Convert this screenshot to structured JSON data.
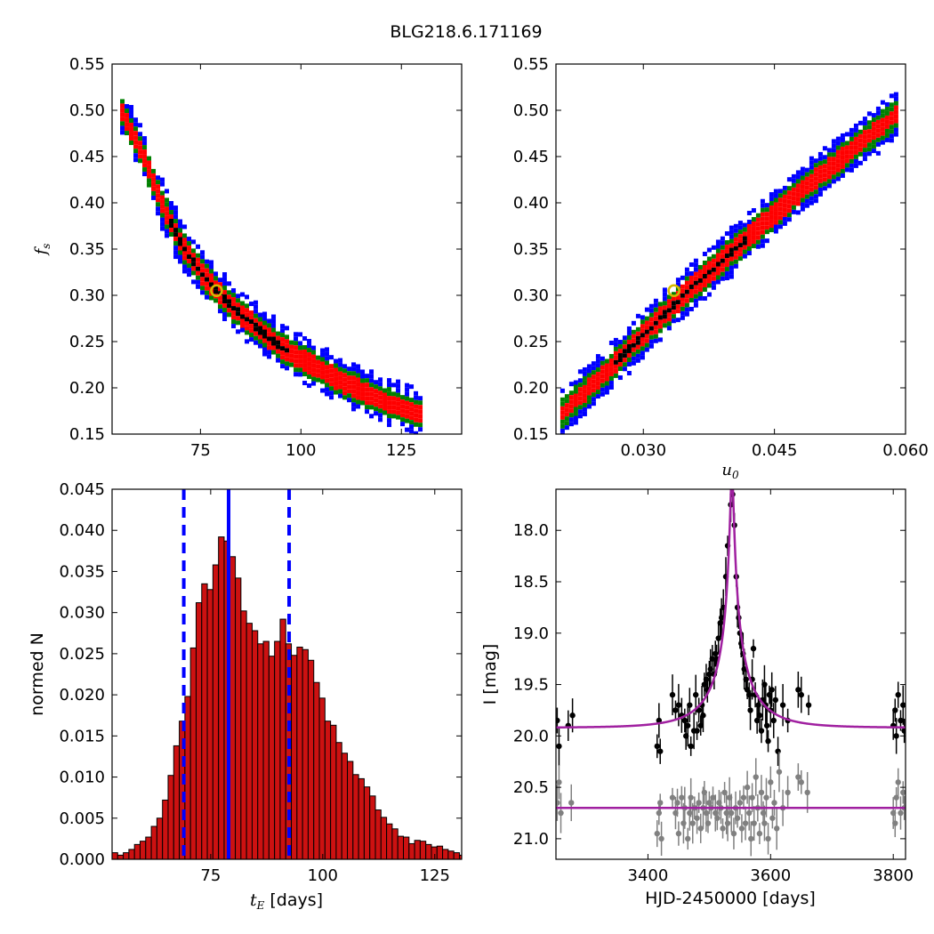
{
  "figure": {
    "title": "BLG218.6.171169"
  },
  "colors": {
    "blue": "#0000ff",
    "green": "#008000",
    "red": "#ff0000",
    "black": "#000000",
    "best_fit": "#d4b800",
    "bar_fill": "#cc1111",
    "model": "#a020a0",
    "gray": "#808080"
  },
  "chart_data": [
    {
      "id": "panel_tE_fs",
      "type": "heatmap",
      "title": "",
      "xlabel": "",
      "ylabel": "f_s",
      "xlim": [
        53,
        140
      ],
      "ylim": [
        0.15,
        0.55
      ],
      "xticks": [
        "75",
        "100",
        "125"
      ],
      "xtick_values": [
        75,
        100,
        125
      ],
      "yticks": [
        "0.15",
        "0.20",
        "0.25",
        "0.30",
        "0.35",
        "0.40",
        "0.45",
        "0.50",
        "0.55"
      ],
      "ytick_values": [
        0.15,
        0.2,
        0.25,
        0.3,
        0.35,
        0.4,
        0.45,
        0.5,
        0.55
      ],
      "description_levels": [
        "blue",
        "green",
        "red",
        "black"
      ],
      "ridge": [
        [
          55,
          0.5
        ],
        [
          60,
          0.455
        ],
        [
          65,
          0.4
        ],
        [
          70,
          0.355
        ],
        [
          75,
          0.325
        ],
        [
          80,
          0.3
        ],
        [
          85,
          0.28
        ],
        [
          90,
          0.262
        ],
        [
          95,
          0.245
        ],
        [
          100,
          0.232
        ],
        [
          105,
          0.22
        ],
        [
          110,
          0.208
        ],
        [
          115,
          0.198
        ],
        [
          120,
          0.188
        ],
        [
          125,
          0.18
        ],
        [
          130,
          0.173
        ]
      ],
      "best_fit": [
        79,
        0.305
      ]
    },
    {
      "id": "panel_u0_fs",
      "type": "heatmap",
      "title": "",
      "xlabel": "u_0",
      "ylabel": "",
      "xlim": [
        0.02,
        0.06
      ],
      "ylim": [
        0.15,
        0.55
      ],
      "xticks": [
        "0.030",
        "0.045",
        "0.060"
      ],
      "xtick_values": [
        0.03,
        0.045,
        0.06
      ],
      "yticks": [
        "0.15",
        "0.20",
        "0.25",
        "0.30",
        "0.35",
        "0.40",
        "0.45",
        "0.50",
        "0.55"
      ],
      "ytick_values": [
        0.15,
        0.2,
        0.25,
        0.3,
        0.35,
        0.4,
        0.45,
        0.5,
        0.55
      ],
      "ridge": [
        [
          0.0205,
          0.175
        ],
        [
          0.025,
          0.215
        ],
        [
          0.03,
          0.262
        ],
        [
          0.035,
          0.308
        ],
        [
          0.04,
          0.35
        ],
        [
          0.045,
          0.393
        ],
        [
          0.05,
          0.432
        ],
        [
          0.055,
          0.47
        ],
        [
          0.059,
          0.5
        ]
      ],
      "best_fit": [
        0.0335,
        0.305
      ]
    },
    {
      "id": "panel_tE_hist",
      "type": "bar",
      "title": "",
      "xlabel": "t_E  [days]",
      "ylabel": "normed N",
      "xlim": [
        53,
        131
      ],
      "ylim": [
        0.0,
        0.045
      ],
      "xticks": [
        "75",
        "100",
        "125"
      ],
      "xtick_values": [
        75,
        100,
        125
      ],
      "yticks": [
        "0.000",
        "0.005",
        "0.010",
        "0.015",
        "0.020",
        "0.025",
        "0.030",
        "0.035",
        "0.040",
        "0.045"
      ],
      "ytick_values": [
        0.0,
        0.005,
        0.01,
        0.015,
        0.02,
        0.025,
        0.03,
        0.035,
        0.04,
        0.045
      ],
      "bin_start": 53,
      "bin_width": 1.25,
      "values": [
        0.0008,
        0.0005,
        0.0008,
        0.0012,
        0.0018,
        0.0022,
        0.0027,
        0.004,
        0.005,
        0.0072,
        0.0102,
        0.0138,
        0.0168,
        0.0198,
        0.0257,
        0.0312,
        0.0335,
        0.0328,
        0.0358,
        0.0392,
        0.0387,
        0.0368,
        0.0342,
        0.0302,
        0.0287,
        0.0278,
        0.0262,
        0.0265,
        0.0247,
        0.0265,
        0.0292,
        0.0262,
        0.0248,
        0.0258,
        0.0255,
        0.0242,
        0.0215,
        0.0196,
        0.0168,
        0.0163,
        0.0142,
        0.0129,
        0.0119,
        0.0103,
        0.0098,
        0.0088,
        0.0077,
        0.006,
        0.0051,
        0.0043,
        0.0037,
        0.0028,
        0.0027,
        0.0019,
        0.0023,
        0.0022,
        0.0018,
        0.0015,
        0.0016,
        0.0012,
        0.001,
        0.0008,
        0.0005,
        0.0004
      ],
      "median": 79,
      "lower": 69,
      "upper": 92.5
    },
    {
      "id": "panel_lightcurve",
      "type": "scatter",
      "title": "",
      "xlabel": "HJD-2450000 [days]",
      "ylabel": "I [mag]",
      "xlim": [
        3250,
        3820
      ],
      "ylim": [
        21.2,
        17.6
      ],
      "xticks": [
        "3400",
        "3600",
        "3800"
      ],
      "xtick_values": [
        3400,
        3600,
        3800
      ],
      "yticks": [
        "18.0",
        "18.5",
        "19.0",
        "19.5",
        "20.0",
        "20.5",
        "21.0"
      ],
      "ytick_values": [
        18.0,
        18.5,
        19.0,
        19.5,
        20.0,
        20.5,
        21.0
      ],
      "model": {
        "t0": 3537,
        "tE": 79,
        "u0": 0.0335,
        "fs": 0.305,
        "I_base": 19.92
      },
      "shifted_baseline": 20.7,
      "series": [
        {
          "color": "black",
          "points": [
            [
              3252,
              19.85
            ],
            [
              3255,
              20.1
            ],
            [
              3270,
              19.9
            ],
            [
              3277,
              19.8
            ],
            [
              3415,
              20.1
            ],
            [
              3418,
              19.85
            ],
            [
              3420,
              20.15
            ],
            [
              3440,
              19.6
            ],
            [
              3445,
              19.75
            ],
            [
              3450,
              19.7
            ],
            [
              3455,
              19.8
            ],
            [
              3460,
              19.85
            ],
            [
              3462,
              20.0
            ],
            [
              3465,
              19.9
            ],
            [
              3468,
              19.7
            ],
            [
              3470,
              20.1
            ],
            [
              3475,
              19.95
            ],
            [
              3478,
              19.6
            ],
            [
              3480,
              19.95
            ],
            [
              3483,
              19.75
            ],
            [
              3486,
              19.9
            ],
            [
              3488,
              19.7
            ],
            [
              3490,
              19.8
            ],
            [
              3492,
              19.5
            ],
            [
              3495,
              19.45
            ],
            [
              3497,
              19.55
            ],
            [
              3500,
              19.4
            ],
            [
              3502,
              19.35
            ],
            [
              3505,
              19.25
            ],
            [
              3508,
              19.4
            ],
            [
              3510,
              19.2
            ],
            [
              3512,
              19.25
            ],
            [
              3515,
              19.05
            ],
            [
              3518,
              18.9
            ],
            [
              3520,
              18.85
            ],
            [
              3523,
              18.75
            ],
            [
              3527,
              18.45
            ],
            [
              3530,
              18.15
            ],
            [
              3535,
              17.75
            ],
            [
              3538,
              17.65
            ],
            [
              3541,
              17.95
            ],
            [
              3544,
              18.45
            ],
            [
              3546,
              18.75
            ],
            [
              3548,
              18.85
            ],
            [
              3550,
              19.0
            ],
            [
              3552,
              19.1
            ],
            [
              3555,
              19.2
            ],
            [
              3557,
              19.35
            ],
            [
              3560,
              19.45
            ],
            [
              3562,
              19.55
            ],
            [
              3565,
              19.6
            ],
            [
              3567,
              19.75
            ],
            [
              3570,
              19.45
            ],
            [
              3572,
              19.15
            ],
            [
              3575,
              19.6
            ],
            [
              3578,
              19.85
            ],
            [
              3580,
              19.7
            ],
            [
              3582,
              19.8
            ],
            [
              3585,
              19.95
            ],
            [
              3587,
              19.65
            ],
            [
              3590,
              19.5
            ],
            [
              3592,
              19.7
            ],
            [
              3594,
              19.9
            ],
            [
              3596,
              20.05
            ],
            [
              3598,
              19.6
            ],
            [
              3600,
              19.75
            ],
            [
              3602,
              19.55
            ],
            [
              3605,
              19.85
            ],
            [
              3608,
              19.65
            ],
            [
              3612,
              20.15
            ],
            [
              3620,
              19.7
            ],
            [
              3628,
              19.85
            ],
            [
              3645,
              19.55
            ],
            [
              3650,
              19.6
            ],
            [
              3662,
              19.7
            ],
            [
              3800,
              19.9
            ],
            [
              3803,
              19.75
            ],
            [
              3805,
              20.0
            ],
            [
              3808,
              19.6
            ],
            [
              3812,
              19.85
            ],
            [
              3816,
              19.7
            ],
            [
              3818,
              19.95
            ]
          ]
        },
        {
          "color": "gray",
          "points": [
            [
              3252,
              20.65
            ],
            [
              3255,
              20.45
            ],
            [
              3258,
              20.75
            ],
            [
              3275,
              20.65
            ],
            [
              3415,
              20.95
            ],
            [
              3418,
              20.75
            ],
            [
              3420,
              20.65
            ],
            [
              3422,
              21.0
            ],
            [
              3440,
              20.6
            ],
            [
              3445,
              20.75
            ],
            [
              3448,
              20.65
            ],
            [
              3450,
              20.95
            ],
            [
              3455,
              20.6
            ],
            [
              3458,
              20.85
            ],
            [
              3460,
              20.7
            ],
            [
              3465,
              21.0
            ],
            [
              3468,
              20.75
            ],
            [
              3470,
              20.6
            ],
            [
              3473,
              20.85
            ],
            [
              3476,
              20.7
            ],
            [
              3480,
              20.8
            ],
            [
              3483,
              20.65
            ],
            [
              3486,
              20.9
            ],
            [
              3490,
              20.7
            ],
            [
              3492,
              20.55
            ],
            [
              3495,
              20.75
            ],
            [
              3498,
              20.85
            ],
            [
              3500,
              20.65
            ],
            [
              3503,
              20.7
            ],
            [
              3506,
              20.6
            ],
            [
              3510,
              20.75
            ],
            [
              3513,
              20.8
            ],
            [
              3516,
              20.65
            ],
            [
              3519,
              20.7
            ],
            [
              3522,
              20.9
            ],
            [
              3525,
              20.55
            ],
            [
              3528,
              20.75
            ],
            [
              3530,
              20.85
            ],
            [
              3533,
              20.6
            ],
            [
              3536,
              20.75
            ],
            [
              3540,
              20.95
            ],
            [
              3543,
              20.7
            ],
            [
              3546,
              20.8
            ],
            [
              3550,
              20.65
            ],
            [
              3553,
              20.9
            ],
            [
              3556,
              20.6
            ],
            [
              3559,
              20.85
            ],
            [
              3562,
              20.5
            ],
            [
              3565,
              20.75
            ],
            [
              3568,
              21.0
            ],
            [
              3570,
              20.6
            ],
            [
              3573,
              20.85
            ],
            [
              3576,
              20.4
            ],
            [
              3579,
              20.7
            ],
            [
              3582,
              20.95
            ],
            [
              3585,
              20.55
            ],
            [
              3588,
              20.75
            ],
            [
              3590,
              20.85
            ],
            [
              3593,
              20.6
            ],
            [
              3596,
              21.0
            ],
            [
              3600,
              20.45
            ],
            [
              3603,
              20.8
            ],
            [
              3606,
              20.65
            ],
            [
              3610,
              20.9
            ],
            [
              3614,
              20.35
            ],
            [
              3620,
              20.7
            ],
            [
              3628,
              20.55
            ],
            [
              3645,
              20.4
            ],
            [
              3650,
              20.45
            ],
            [
              3660,
              20.55
            ],
            [
              3800,
              20.75
            ],
            [
              3803,
              20.85
            ],
            [
              3805,
              20.6
            ],
            [
              3808,
              20.45
            ],
            [
              3812,
              20.75
            ],
            [
              3816,
              20.55
            ],
            [
              3818,
              20.7
            ]
          ]
        }
      ]
    }
  ]
}
